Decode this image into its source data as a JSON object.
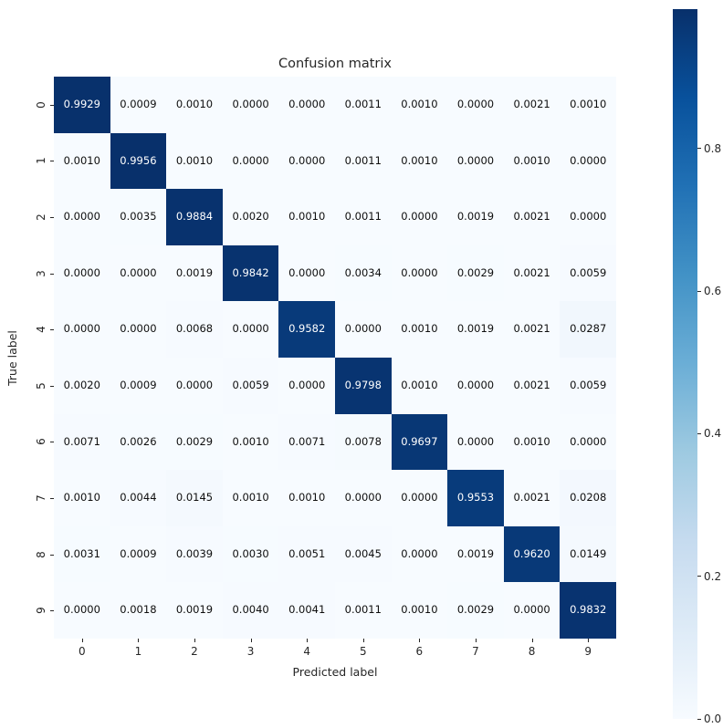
{
  "chart_data": {
    "type": "heatmap",
    "title": "Confusion matrix",
    "xlabel": "Predicted label",
    "ylabel": "True label",
    "x_tick_labels": [
      "0",
      "1",
      "2",
      "3",
      "4",
      "5",
      "6",
      "7",
      "8",
      "9"
    ],
    "y_tick_labels": [
      "0",
      "1",
      "2",
      "3",
      "4",
      "5",
      "6",
      "7",
      "8",
      "9"
    ],
    "matrix": [
      [
        0.9929,
        0.0009,
        0.001,
        0.0,
        0.0,
        0.0011,
        0.001,
        0.0,
        0.0021,
        0.001
      ],
      [
        0.001,
        0.9956,
        0.001,
        0.0,
        0.0,
        0.0011,
        0.001,
        0.0,
        0.001,
        0.0
      ],
      [
        0.0,
        0.0035,
        0.9884,
        0.002,
        0.001,
        0.0011,
        0.0,
        0.0019,
        0.0021,
        0.0
      ],
      [
        0.0,
        0.0,
        0.0019,
        0.9842,
        0.0,
        0.0034,
        0.0,
        0.0029,
        0.0021,
        0.0059
      ],
      [
        0.0,
        0.0,
        0.0068,
        0.0,
        0.9582,
        0.0,
        0.001,
        0.0019,
        0.0021,
        0.0287
      ],
      [
        0.002,
        0.0009,
        0.0,
        0.0059,
        0.0,
        0.9798,
        0.001,
        0.0,
        0.0021,
        0.0059
      ],
      [
        0.0071,
        0.0026,
        0.0029,
        0.001,
        0.0071,
        0.0078,
        0.9697,
        0.0,
        0.001,
        0.0
      ],
      [
        0.001,
        0.0044,
        0.0145,
        0.001,
        0.001,
        0.0,
        0.0,
        0.9553,
        0.0021,
        0.0208
      ],
      [
        0.0031,
        0.0009,
        0.0039,
        0.003,
        0.0051,
        0.0045,
        0.0,
        0.0019,
        0.962,
        0.0149
      ],
      [
        0.0,
        0.0018,
        0.0019,
        0.004,
        0.0041,
        0.0011,
        0.001,
        0.0029,
        0.0,
        0.9832
      ]
    ],
    "value_decimals": 4,
    "vmin": 0.0,
    "vmax": 0.9956,
    "colormap": "Blues",
    "colormap_stops": [
      "#f7fbff",
      "#deebf7",
      "#c6dbef",
      "#9ecae1",
      "#6baed6",
      "#4292c6",
      "#2171b5",
      "#08519c",
      "#08306b"
    ],
    "grid": false,
    "legend_position": "none",
    "colorbar": {
      "position": "right",
      "tick_labels": [
        "0.0",
        "0.2",
        "0.4",
        "0.6",
        "0.8"
      ],
      "tick_values": [
        0.0,
        0.2,
        0.4,
        0.6,
        0.8
      ]
    }
  },
  "colors": {
    "background": "#ffffff",
    "text": "#262626",
    "annot_light": "#ffffff",
    "annot_dark": "#0e0e0e"
  }
}
